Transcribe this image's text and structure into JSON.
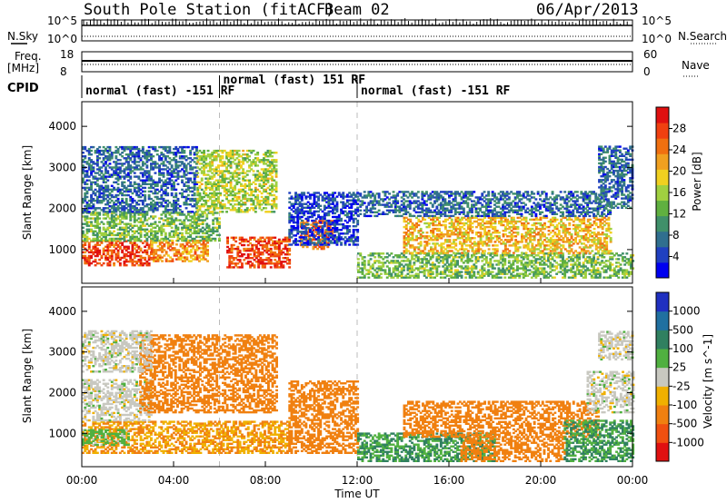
{
  "header": {
    "station": "South Pole Station (fitACF)",
    "beam": "Beam 02",
    "date": "06/Apr/2013"
  },
  "top_panels": {
    "nsky_label": "N.Sky",
    "nsearch_label": "N.Search",
    "freq_label_1": "Freq.",
    "freq_label_2": "[MHz]",
    "nave_label": "Nave",
    "cpid_label": "CPID",
    "noise_ticks_left": [
      "10^5",
      "10^0"
    ],
    "noise_ticks_right": [
      "10^5",
      "10^0"
    ],
    "freq_ticks": [
      "18",
      "8"
    ],
    "nave_ticks": [
      "60",
      "0"
    ]
  },
  "cpid_modes": [
    {
      "label": "normal (fast) -151 RF",
      "start_h": 0,
      "end_h": 6
    },
    {
      "label": "normal (fast) 151 RF",
      "start_h": 6,
      "end_h": 12
    },
    {
      "label": "normal (fast) -151 RF",
      "start_h": 12,
      "end_h": 24
    }
  ],
  "chart_data": [
    {
      "type": "heatmap",
      "title": "Power",
      "ylabel": "Slant Range [km]",
      "xlabel": "Time UT",
      "xlim": [
        0,
        24
      ],
      "ylim": [
        180,
        4600
      ],
      "x_ticks": [
        "00:00",
        "04:00",
        "08:00",
        "12:00",
        "16:00",
        "20:00",
        "00:00"
      ],
      "y_ticks": [
        1000,
        2000,
        3000,
        4000
      ],
      "colorbar": {
        "label": "Power [dB]",
        "ticks": [
          4,
          8,
          12,
          16,
          20,
          24,
          28
        ],
        "colors": [
          "#0000f0",
          "#2040c0",
          "#306f8f",
          "#40906a",
          "#60b040",
          "#a0d040",
          "#f0d020",
          "#f0a020",
          "#f07010",
          "#f04010",
          "#e01010"
        ]
      },
      "bands": [
        {
          "t0": 0.0,
          "t1": 3.0,
          "r0": 600,
          "r1": 1200,
          "value": 26
        },
        {
          "t0": 3.0,
          "t1": 5.5,
          "r0": 700,
          "r1": 1200,
          "value": 22
        },
        {
          "t0": 6.3,
          "t1": 9.0,
          "r0": 550,
          "r1": 1300,
          "value": 26
        },
        {
          "t0": 0.0,
          "t1": 6.0,
          "r0": 1200,
          "r1": 1900,
          "value": 14
        },
        {
          "t0": 0.0,
          "t1": 5.0,
          "r0": 1900,
          "r1": 3500,
          "value": 8
        },
        {
          "t0": 5.0,
          "t1": 8.5,
          "r0": 1900,
          "r1": 3400,
          "value": 16
        },
        {
          "t0": 9.5,
          "t1": 11.0,
          "r0": 1000,
          "r1": 1700,
          "value": 24
        },
        {
          "t0": 9.0,
          "t1": 12.0,
          "r0": 1100,
          "r1": 2400,
          "value": 6
        },
        {
          "t0": 12.0,
          "t1": 24.0,
          "r0": 300,
          "r1": 900,
          "value": 14
        },
        {
          "t0": 14.0,
          "t1": 23.0,
          "r0": 900,
          "r1": 1800,
          "value": 20
        },
        {
          "t0": 12.0,
          "t1": 23.0,
          "r0": 1800,
          "r1": 2400,
          "value": 8
        },
        {
          "t0": 22.5,
          "t1": 24.0,
          "r0": 2000,
          "r1": 3500,
          "value": 8
        }
      ]
    },
    {
      "type": "heatmap",
      "title": "Velocity",
      "ylabel": "Slant Range [km]",
      "xlabel": "Time UT",
      "xlim": [
        0,
        24
      ],
      "ylim": [
        180,
        4600
      ],
      "x_ticks": [
        "00:00",
        "04:00",
        "08:00",
        "12:00",
        "16:00",
        "20:00",
        "00:00"
      ],
      "y_ticks": [
        1000,
        2000,
        3000,
        4000
      ],
      "colorbar": {
        "label": "Velocity [m s^-1]",
        "ticks": [
          1000,
          500,
          100,
          25,
          -25,
          -100,
          -500,
          -1000
        ],
        "colors": [
          "#2030c0",
          "#2070a0",
          "#308060",
          "#50b040",
          "#c8c8c0",
          "#f0b000",
          "#f08010",
          "#f05010",
          "#e01010"
        ]
      },
      "bands": [
        {
          "t0": 0.0,
          "t1": 9.0,
          "r0": 500,
          "r1": 1300,
          "value": -100
        },
        {
          "t0": 0.0,
          "t1": 2.0,
          "r0": 700,
          "r1": 1100,
          "value": 50
        },
        {
          "t0": 0.0,
          "t1": 3.0,
          "r0": 1300,
          "r1": 2300,
          "value": 0
        },
        {
          "t0": 2.5,
          "t1": 8.5,
          "r0": 1500,
          "r1": 3400,
          "value": -150
        },
        {
          "t0": 0.0,
          "t1": 3.0,
          "r0": 2500,
          "r1": 3500,
          "value": 0
        },
        {
          "t0": 9.0,
          "t1": 12.0,
          "r0": 500,
          "r1": 2300,
          "value": -200
        },
        {
          "t0": 12.0,
          "t1": 18.0,
          "r0": 300,
          "r1": 1000,
          "value": 100
        },
        {
          "t0": 16.5,
          "t1": 21.0,
          "r0": 300,
          "r1": 900,
          "value": -150
        },
        {
          "t0": 14.0,
          "t1": 22.5,
          "r0": 900,
          "r1": 1800,
          "value": -200
        },
        {
          "t0": 21.0,
          "t1": 24.0,
          "r0": 300,
          "r1": 1300,
          "value": 100
        },
        {
          "t0": 22.0,
          "t1": 24.0,
          "r0": 1500,
          "r1": 2500,
          "value": 0
        },
        {
          "t0": 22.5,
          "t1": 24.0,
          "r0": 2800,
          "r1": 3500,
          "value": 0
        }
      ]
    }
  ]
}
